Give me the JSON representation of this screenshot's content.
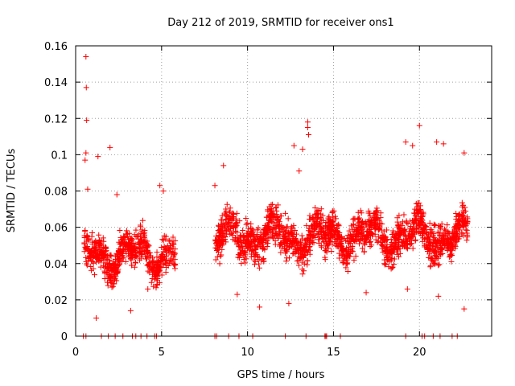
{
  "chart_data": {
    "type": "scatter",
    "title": "Day 212 of 2019, SRMTID for receiver ons1",
    "xlabel": "GPS time / hours",
    "ylabel": "SRMTID / TECUs",
    "xlim": [
      0,
      24.2
    ],
    "ylim": [
      0,
      0.16
    ],
    "xticks": [
      0,
      5,
      10,
      15,
      20
    ],
    "xtick_labels": [
      "0",
      "5",
      "10",
      "15",
      "20"
    ],
    "yticks": [
      0,
      0.02,
      0.04,
      0.06,
      0.08,
      0.1,
      0.12,
      0.14,
      0.16
    ],
    "ytick_labels": [
      "0",
      "0.02",
      "0.04",
      "0.06",
      "0.08",
      "0.1",
      "0.12",
      "0.14",
      "0.16"
    ],
    "grid": true,
    "marker": "+",
    "series": [
      {
        "name": "SRMTID",
        "color": "#ff0000",
        "segments": [
          {
            "x_start": 0.5,
            "x_end": 5.8,
            "mean": 0.045,
            "spread": 0.011
          },
          {
            "x_start": 8.1,
            "x_end": 22.8,
            "mean": 0.055,
            "spread": 0.013
          }
        ],
        "points": [
          [
            0.6,
            0.154
          ],
          [
            0.62,
            0.137
          ],
          [
            0.64,
            0.119
          ],
          [
            0.6,
            0.101
          ],
          [
            0.55,
            0.097
          ],
          [
            0.7,
            0.081
          ],
          [
            1.3,
            0.099
          ],
          [
            2.0,
            0.104
          ],
          [
            1.2,
            0.01
          ],
          [
            3.2,
            0.014
          ],
          [
            4.9,
            0.083
          ],
          [
            5.1,
            0.08
          ],
          [
            8.1,
            0.083
          ],
          [
            8.6,
            0.094
          ],
          [
            12.7,
            0.105
          ],
          [
            13.5,
            0.118
          ],
          [
            13.5,
            0.115
          ],
          [
            13.55,
            0.111
          ],
          [
            13.2,
            0.103
          ],
          [
            13.0,
            0.091
          ],
          [
            19.2,
            0.107
          ],
          [
            19.6,
            0.105
          ],
          [
            20.0,
            0.116
          ],
          [
            21.0,
            0.107
          ],
          [
            21.4,
            0.106
          ],
          [
            22.6,
            0.101
          ],
          [
            12.4,
            0.018
          ],
          [
            10.7,
            0.016
          ],
          [
            22.6,
            0.015
          ],
          [
            16.9,
            0.024
          ],
          [
            9.4,
            0.023
          ],
          [
            19.3,
            0.026
          ],
          [
            21.1,
            0.022
          ],
          [
            4.2,
            0.026
          ],
          [
            2.4,
            0.078
          ]
        ],
        "zero_markers_x": [
          0.45,
          0.6,
          1.5,
          1.9,
          2.3,
          2.75,
          3.3,
          3.5,
          3.8,
          4.15,
          4.6,
          4.7,
          8.1,
          8.2,
          8.9,
          9.5,
          10.3,
          12.2,
          13.4,
          14.5,
          14.55,
          14.6,
          15.4,
          19.2,
          20.15,
          20.3,
          20.8,
          21.2,
          21.9,
          22.2
        ]
      }
    ]
  }
}
